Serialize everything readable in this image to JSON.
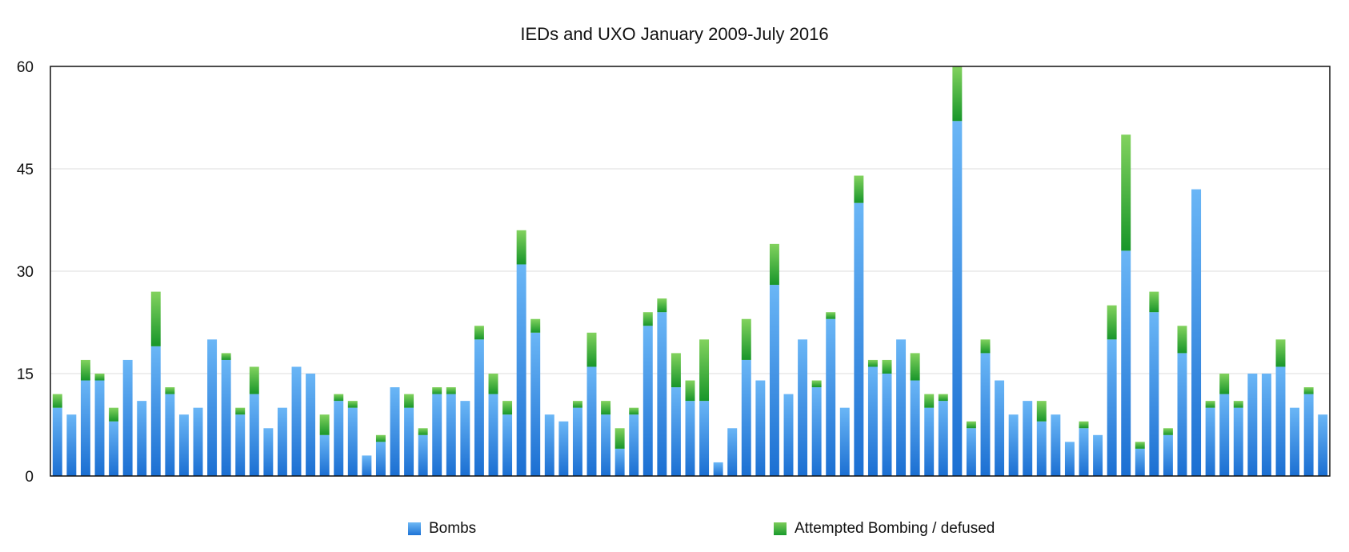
{
  "chart_data": {
    "type": "bar",
    "stacked": true,
    "title": "IEDs and UXO January 2009-July 2016",
    "xlabel": "",
    "ylabel": "",
    "ylim": [
      0,
      60
    ],
    "yticks": [
      0,
      15,
      30,
      45,
      60
    ],
    "ytick_labels": [
      "0",
      "15",
      "30",
      "45",
      "60"
    ],
    "grid": true,
    "legend_position": "bottom",
    "colors": {
      "Bombs": "#3c90e6",
      "Attempted Bombing / defused": "#3aae3c"
    },
    "series": [
      {
        "name": "Bombs",
        "values": [
          10,
          9,
          14,
          14,
          8,
          17,
          11,
          19,
          12,
          9,
          10,
          20,
          17,
          9,
          12,
          7,
          10,
          16,
          15,
          6,
          11,
          10,
          3,
          5,
          13,
          10,
          6,
          12,
          12,
          11,
          20,
          12,
          9,
          31,
          21,
          9,
          8,
          10,
          16,
          9,
          4,
          9,
          22,
          24,
          13,
          11,
          11,
          2,
          7,
          17,
          14,
          28,
          12,
          20,
          13,
          23,
          10,
          40,
          16,
          15,
          20,
          14,
          10,
          11,
          52,
          7,
          18,
          14,
          9,
          11,
          8,
          9,
          5,
          7,
          6,
          20,
          33,
          4,
          24,
          6,
          18,
          42,
          10,
          12,
          10,
          15,
          15,
          16,
          10,
          12,
          9
        ]
      },
      {
        "name": "Attempted Bombing / defused",
        "values": [
          2,
          0,
          3,
          1,
          2,
          0,
          0,
          8,
          1,
          0,
          0,
          0,
          1,
          1,
          4,
          0,
          0,
          0,
          0,
          3,
          1,
          1,
          0,
          1,
          0,
          2,
          1,
          1,
          1,
          0,
          2,
          3,
          2,
          5,
          2,
          0,
          0,
          1,
          5,
          2,
          3,
          1,
          2,
          2,
          5,
          3,
          9,
          0,
          0,
          6,
          0,
          6,
          0,
          0,
          1,
          1,
          0,
          4,
          1,
          2,
          0,
          4,
          2,
          1,
          8,
          1,
          2,
          0,
          0,
          0,
          3,
          0,
          0,
          1,
          0,
          5,
          17,
          1,
          3,
          1,
          4,
          0,
          1,
          3,
          1,
          0,
          0,
          4,
          0,
          1,
          0
        ]
      }
    ]
  }
}
